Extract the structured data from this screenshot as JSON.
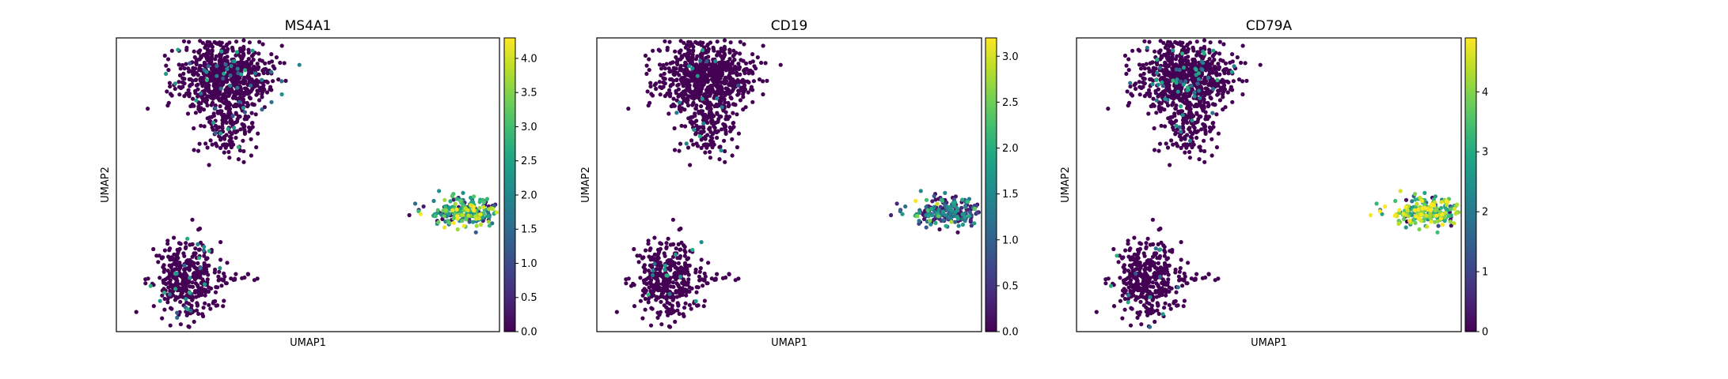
{
  "chart_data": [
    {
      "type": "scatter",
      "title": "MS4A1",
      "xlabel": "UMAP1",
      "ylabel": "UMAP2",
      "xticks": [],
      "yticks": [],
      "colormap": "viridis",
      "colorbar": {
        "vmin": 0.0,
        "vmax": 4.3,
        "ticks": [
          0.0,
          0.5,
          1.0,
          1.5,
          2.0,
          2.5,
          3.0,
          3.5,
          4.0
        ],
        "tick_labels": [
          "0.0",
          "0.5",
          "1.0",
          "1.5",
          "2.0",
          "2.5",
          "3.0",
          "3.5",
          "4.0"
        ]
      },
      "xlim": [
        -1.0,
        21.0
      ],
      "ylim": [
        -1.0,
        15.0
      ],
      "clusters": [
        {
          "center": [
            5.2,
            12.9
          ],
          "spread": [
            1.35,
            0.95
          ],
          "n": 760,
          "expression": "low",
          "mean": 0.15,
          "frac_expressing": 0.05
        },
        {
          "center": [
            5.3,
            10.0
          ],
          "spread": [
            0.75,
            0.9
          ],
          "n": 150,
          "expression": "low",
          "mean": 0.15,
          "frac_expressing": 0.05
        },
        {
          "center": [
            3.0,
            1.8
          ],
          "spread": [
            0.95,
            1.1
          ],
          "n": 380,
          "expression": "low",
          "mean": 0.12,
          "frac_expressing": 0.06
        },
        {
          "center": [
            5.6,
            1.9
          ],
          "spread": [
            1.0,
            0.12
          ],
          "n": 22,
          "expression": "low",
          "mean": 0.05,
          "frac_expressing": 0.0
        },
        {
          "center": [
            19.1,
            5.5
          ],
          "spread": [
            1.1,
            0.38
          ],
          "n": 240,
          "expression": "high",
          "mean": 2.5,
          "frac_expressing": 0.85
        }
      ]
    },
    {
      "type": "scatter",
      "title": "CD19",
      "xlabel": "UMAP1",
      "ylabel": "UMAP2",
      "xticks": [],
      "yticks": [],
      "colormap": "viridis",
      "colorbar": {
        "vmin": 0.0,
        "vmax": 3.2,
        "ticks": [
          0.0,
          0.5,
          1.0,
          1.5,
          2.0,
          2.5,
          3.0
        ],
        "tick_labels": [
          "0.0",
          "0.5",
          "1.0",
          "1.5",
          "2.0",
          "2.5",
          "3.0"
        ]
      },
      "xlim": [
        -1.0,
        21.0
      ],
      "ylim": [
        -1.0,
        15.0
      ],
      "clusters": [
        {
          "center": [
            5.2,
            12.9
          ],
          "spread": [
            1.35,
            0.95
          ],
          "n": 760,
          "expression": "low",
          "mean": 0.08,
          "frac_expressing": 0.02
        },
        {
          "center": [
            5.3,
            10.0
          ],
          "spread": [
            0.75,
            0.9
          ],
          "n": 150,
          "expression": "low",
          "mean": 0.08,
          "frac_expressing": 0.02
        },
        {
          "center": [
            3.0,
            1.8
          ],
          "spread": [
            0.95,
            1.1
          ],
          "n": 380,
          "expression": "low",
          "mean": 0.08,
          "frac_expressing": 0.03
        },
        {
          "center": [
            5.6,
            1.9
          ],
          "spread": [
            1.0,
            0.12
          ],
          "n": 22,
          "expression": "low",
          "mean": 0.05,
          "frac_expressing": 0.0
        },
        {
          "center": [
            19.1,
            5.5
          ],
          "spread": [
            1.1,
            0.38
          ],
          "n": 240,
          "expression": "high",
          "mean": 1.3,
          "frac_expressing": 0.6
        }
      ]
    },
    {
      "type": "scatter",
      "title": "CD79A",
      "xlabel": "UMAP1",
      "ylabel": "UMAP2",
      "xticks": [],
      "yticks": [],
      "colormap": "viridis",
      "colorbar": {
        "vmin": 0,
        "vmax": 4.9,
        "ticks": [
          0,
          1,
          2,
          3,
          4
        ],
        "tick_labels": [
          "0",
          "1",
          "2",
          "3",
          "4"
        ]
      },
      "xlim": [
        -1.0,
        21.0
      ],
      "ylim": [
        -1.0,
        15.0
      ],
      "clusters": [
        {
          "center": [
            5.2,
            12.9
          ],
          "spread": [
            1.35,
            0.95
          ],
          "n": 760,
          "expression": "low",
          "mean": 0.2,
          "frac_expressing": 0.07
        },
        {
          "center": [
            5.3,
            10.0
          ],
          "spread": [
            0.75,
            0.9
          ],
          "n": 150,
          "expression": "low",
          "mean": 0.2,
          "frac_expressing": 0.06
        },
        {
          "center": [
            3.0,
            1.8
          ],
          "spread": [
            0.95,
            1.1
          ],
          "n": 380,
          "expression": "low",
          "mean": 0.1,
          "frac_expressing": 0.04
        },
        {
          "center": [
            5.6,
            1.9
          ],
          "spread": [
            1.0,
            0.12
          ],
          "n": 22,
          "expression": "low",
          "mean": 0.05,
          "frac_expressing": 0.0
        },
        {
          "center": [
            19.1,
            5.5
          ],
          "spread": [
            1.1,
            0.38
          ],
          "n": 240,
          "expression": "high",
          "mean": 3.5,
          "frac_expressing": 0.95
        }
      ]
    }
  ]
}
